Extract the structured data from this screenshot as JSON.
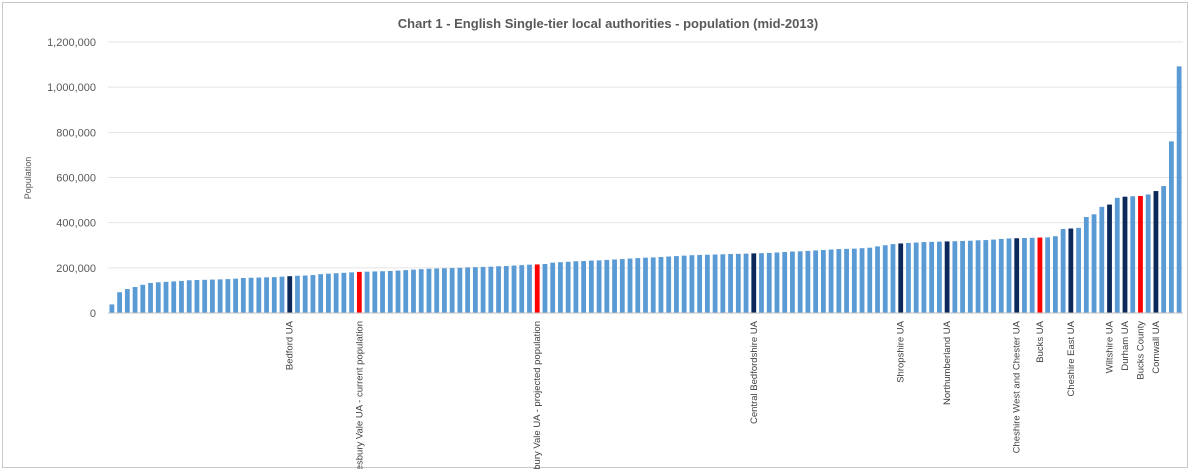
{
  "chart_data": {
    "type": "bar",
    "title": "Chart 1 - English Single-tier local authorities - population (mid-2013)",
    "ylabel": "Population",
    "xlabel": "",
    "ylim": [
      0,
      1200000
    ],
    "yticks": [
      0,
      200000,
      400000,
      600000,
      800000,
      1000000,
      1200000
    ],
    "ytick_labels": [
      "0",
      "200,000",
      "400,000",
      "600,000",
      "800,000",
      "1,000,000",
      "1,200,000"
    ],
    "grid": true,
    "legend": "none",
    "colors": {
      "default": "#5b9bd5",
      "highlight": "#0b2a5b",
      "proposed": "#ff0000"
    },
    "values": [
      38000,
      92000,
      106000,
      115000,
      125000,
      133000,
      136000,
      138000,
      140000,
      142000,
      145000,
      146000,
      147000,
      148000,
      149000,
      150000,
      152000,
      155000,
      156000,
      157000,
      158000,
      159000,
      161000,
      163000,
      165000,
      166000,
      168000,
      172000,
      174000,
      176000,
      178000,
      180000,
      182000,
      183000,
      184000,
      185000,
      186000,
      188000,
      190000,
      192000,
      194000,
      196000,
      197000,
      198000,
      199000,
      200000,
      202000,
      203000,
      204000,
      205000,
      207000,
      208000,
      210000,
      212000,
      214000,
      215000,
      217000,
      223000,
      225000,
      227000,
      229000,
      230000,
      232000,
      233000,
      235000,
      237000,
      239000,
      241000,
      243000,
      245000,
      246000,
      248000,
      250000,
      252000,
      254000,
      256000,
      257000,
      258000,
      259000,
      260000,
      261000,
      262000,
      263000,
      264000,
      265000,
      266000,
      268000,
      270000,
      272000,
      273000,
      275000,
      277000,
      279000,
      281000,
      283000,
      284000,
      285000,
      287000,
      289000,
      295000,
      300000,
      305000,
      308000,
      310000,
      312000,
      314000,
      315000,
      316000,
      317000,
      318000,
      319000,
      320000,
      322000,
      323000,
      325000,
      328000,
      330000,
      331000,
      332000,
      333000,
      334000,
      335000,
      340000,
      372000,
      374000,
      377000,
      425000,
      437000,
      470000,
      480000,
      510000,
      515000,
      517000,
      518000,
      525000,
      540000,
      562000,
      760000,
      1092000
    ],
    "highlighted": [
      {
        "index": 23,
        "label": "Bedford UA",
        "color": "highlight"
      },
      {
        "index": 32,
        "label": "Aylesbury Vale UA - current population",
        "color": "proposed"
      },
      {
        "index": 55,
        "label": "Aylesbury Vale UA - projected population",
        "color": "proposed"
      },
      {
        "index": 83,
        "label": "Central Bedfordshire UA",
        "color": "highlight"
      },
      {
        "index": 102,
        "label": "Shropshire UA",
        "color": "highlight"
      },
      {
        "index": 108,
        "label": "Northumberland UA",
        "color": "highlight"
      },
      {
        "index": 117,
        "label": "Cheshire West and Chester UA",
        "color": "highlight"
      },
      {
        "index": 120,
        "label": "Bucks UA",
        "color": "proposed"
      },
      {
        "index": 124,
        "label": "Cheshire East UA",
        "color": "highlight"
      },
      {
        "index": 129,
        "label": "Wiltshire UA",
        "color": "highlight"
      },
      {
        "index": 131,
        "label": "Durham UA",
        "color": "highlight"
      },
      {
        "index": 133,
        "label": "Bucks County",
        "color": "proposed"
      },
      {
        "index": 135,
        "label": "Cornwall UA",
        "color": "highlight"
      }
    ]
  }
}
